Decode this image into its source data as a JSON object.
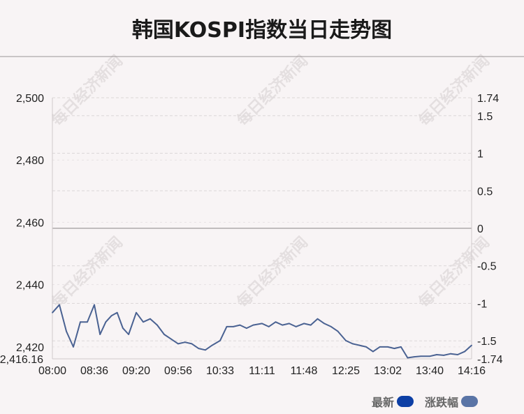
{
  "title": "韩国KOSPI指数当日走势图",
  "watermark": "每日经济新闻",
  "colors": {
    "background": "#f8f4f5",
    "line": "#4a6292",
    "legend_latest": "#0d3fa5",
    "legend_change": "#5a74a6",
    "grid": "#dcd7d8",
    "zero_line": "#c0bcbd"
  },
  "legend": {
    "latest_label": "最新",
    "change_label": "涨跌幅"
  },
  "chart_data": {
    "type": "line",
    "title": "韩国KOSPI指数当日走势图",
    "x_ticks": [
      "08:00",
      "08:36",
      "09:20",
      "09:56",
      "10:33",
      "11:11",
      "11:48",
      "12:25",
      "13:02",
      "13:40",
      "14:16"
    ],
    "y_left_ticks": [
      "2,500",
      "2,480",
      "2,460",
      "2,440",
      "2,420",
      "2,416.16"
    ],
    "y_right_ticks": [
      "1.74",
      "1.5",
      "1",
      "0.5",
      "0",
      "-0.5",
      "-1",
      "-1.5",
      "-1.74"
    ],
    "y_left_range": [
      2416.16,
      2500.0
    ],
    "y_right_range": [
      -1.74,
      1.74
    ],
    "reference_value": 2458.9,
    "grid": true,
    "legend_position": "bottom-right",
    "series": [
      {
        "name": "最新",
        "x": [
          "08:00",
          "08:06",
          "08:12",
          "08:18",
          "08:24",
          "08:30",
          "08:36",
          "08:42",
          "08:48",
          "08:54",
          "09:00",
          "09:06",
          "09:12",
          "09:20",
          "09:26",
          "09:32",
          "09:38",
          "09:44",
          "09:50",
          "09:56",
          "10:02",
          "10:08",
          "10:14",
          "10:20",
          "10:26",
          "10:33",
          "10:39",
          "10:45",
          "10:51",
          "10:57",
          "11:03",
          "11:11",
          "11:17",
          "11:23",
          "11:29",
          "11:35",
          "11:41",
          "11:48",
          "11:54",
          "12:00",
          "12:06",
          "12:12",
          "12:18",
          "12:25",
          "12:31",
          "12:37",
          "12:43",
          "12:49",
          "12:55",
          "13:02",
          "13:08",
          "13:14",
          "13:20",
          "13:26",
          "13:32",
          "13:40",
          "13:46",
          "13:52",
          "13:58",
          "14:04",
          "14:10",
          "14:16"
        ],
        "values": [
          2431,
          2433.5,
          2425,
          2420,
          2428,
          2428,
          2433.5,
          2424,
          2428,
          2430,
          2431,
          2426,
          2424,
          2431,
          2428,
          2429,
          2427,
          2424,
          2422.5,
          2421,
          2421.5,
          2421,
          2419.5,
          2419,
          2420.5,
          2422,
          2426.5,
          2426.5,
          2427,
          2426,
          2427,
          2427.5,
          2426.5,
          2428,
          2427,
          2427.5,
          2426.5,
          2427.5,
          2427,
          2429,
          2427.5,
          2426.5,
          2425,
          2422,
          2421,
          2420.5,
          2420,
          2418.5,
          2420,
          2420,
          2419.5,
          2420,
          2416.5,
          2416.8,
          2417,
          2417,
          2417.5,
          2417.3,
          2417.8,
          2417.5,
          2418.5,
          2420.5
        ]
      }
    ]
  }
}
